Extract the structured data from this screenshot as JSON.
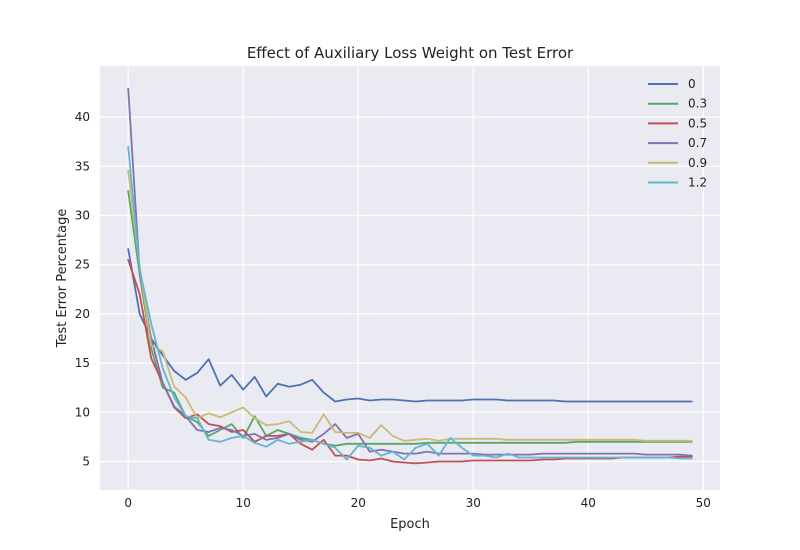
{
  "chart_data": {
    "type": "line",
    "title": "Effect of Auxiliary Loss Weight on Test Error",
    "xlabel": "Epoch",
    "ylabel": "Test Error Percentage",
    "xlim": [
      -2.45,
      51.45
    ],
    "ylim": [
      2.1,
      45.2
    ],
    "xticks": [
      0,
      10,
      20,
      30,
      40,
      50
    ],
    "yticks": [
      5,
      10,
      15,
      20,
      25,
      30,
      35,
      40
    ],
    "grid": true,
    "legend_position": "top-right",
    "background": "#EAEAF2",
    "series": [
      {
        "name": "0",
        "color": "#4C72B0",
        "values": [
          26.6,
          20.0,
          17.5,
          15.8,
          14.2,
          13.3,
          14.0,
          15.4,
          12.7,
          13.8,
          12.3,
          13.6,
          11.6,
          12.9,
          12.6,
          12.8,
          13.3,
          12.0,
          11.1,
          11.3,
          11.4,
          11.2,
          11.3,
          11.3,
          11.2,
          11.1,
          11.2,
          11.2,
          11.2,
          11.2,
          11.3,
          11.3,
          11.3,
          11.2,
          11.2,
          11.2,
          11.2,
          11.2,
          11.1,
          11.1,
          11.1,
          11.1,
          11.1,
          11.1,
          11.1,
          11.1,
          11.1,
          11.1,
          11.1,
          11.1
        ]
      },
      {
        "name": "0.3",
        "color": "#55A868",
        "values": [
          32.5,
          24.0,
          16.5,
          12.5,
          12.0,
          9.6,
          9.0,
          7.6,
          8.2,
          8.8,
          7.4,
          9.6,
          7.6,
          8.2,
          7.8,
          7.4,
          7.2,
          6.8,
          6.6,
          6.8,
          6.8,
          6.8,
          6.8,
          6.8,
          6.8,
          6.8,
          6.9,
          6.9,
          6.9,
          6.9,
          6.9,
          6.9,
          6.9,
          6.9,
          6.9,
          6.9,
          6.9,
          6.9,
          6.9,
          7.0,
          7.0,
          7.0,
          7.0,
          7.0,
          7.0,
          7.0,
          7.0,
          7.0,
          7.0,
          7.0
        ]
      },
      {
        "name": "0.5",
        "color": "#C44E52",
        "values": [
          25.5,
          22.0,
          15.5,
          13.0,
          10.5,
          9.4,
          9.8,
          8.8,
          8.6,
          8.0,
          8.2,
          7.0,
          7.6,
          7.6,
          7.8,
          6.8,
          6.2,
          7.2,
          5.6,
          5.6,
          5.2,
          5.1,
          5.3,
          5.0,
          4.9,
          4.8,
          4.9,
          5.0,
          5.0,
          5.0,
          5.1,
          5.1,
          5.1,
          5.1,
          5.1,
          5.1,
          5.2,
          5.2,
          5.3,
          5.3,
          5.3,
          5.3,
          5.3,
          5.4,
          5.4,
          5.4,
          5.4,
          5.4,
          5.5,
          5.5
        ]
      },
      {
        "name": "0.7",
        "color": "#8172B2",
        "values": [
          42.9,
          24.2,
          17.5,
          13.0,
          10.6,
          9.6,
          8.2,
          8.0,
          8.4,
          8.2,
          7.6,
          7.8,
          7.2,
          7.4,
          7.8,
          7.2,
          7.0,
          7.8,
          8.8,
          7.4,
          7.8,
          6.0,
          6.2,
          6.0,
          5.8,
          5.8,
          6.0,
          5.8,
          5.8,
          5.8,
          5.8,
          5.7,
          5.7,
          5.7,
          5.7,
          5.7,
          5.8,
          5.8,
          5.8,
          5.8,
          5.8,
          5.8,
          5.8,
          5.8,
          5.8,
          5.7,
          5.7,
          5.7,
          5.7,
          5.6
        ]
      },
      {
        "name": "0.9",
        "color": "#CCB974",
        "values": [
          34.6,
          24.8,
          16.8,
          16.2,
          12.6,
          11.5,
          9.4,
          9.9,
          9.5,
          10.0,
          10.5,
          9.4,
          8.7,
          8.8,
          9.1,
          8.0,
          7.9,
          9.8,
          8.0,
          7.9,
          7.9,
          7.4,
          8.7,
          7.6,
          7.1,
          7.2,
          7.3,
          7.1,
          7.3,
          7.3,
          7.3,
          7.3,
          7.3,
          7.2,
          7.2,
          7.2,
          7.2,
          7.2,
          7.2,
          7.2,
          7.2,
          7.2,
          7.2,
          7.2,
          7.2,
          7.1,
          7.1,
          7.1,
          7.1,
          7.1
        ]
      },
      {
        "name": "1.2",
        "color": "#64B5CD",
        "values": [
          37.0,
          24.5,
          19.0,
          14.5,
          11.5,
          9.6,
          9.4,
          7.2,
          7.0,
          7.4,
          7.6,
          6.9,
          6.5,
          7.2,
          6.8,
          7.0,
          7.2,
          6.8,
          6.4,
          5.2,
          6.6,
          6.4,
          5.6,
          6.0,
          5.2,
          6.4,
          6.8,
          5.6,
          7.4,
          6.4,
          5.6,
          5.6,
          5.4,
          5.8,
          5.4,
          5.4,
          5.4,
          5.4,
          5.4,
          5.4,
          5.4,
          5.4,
          5.4,
          5.4,
          5.4,
          5.4,
          5.4,
          5.4,
          5.3,
          5.3
        ]
      }
    ]
  }
}
